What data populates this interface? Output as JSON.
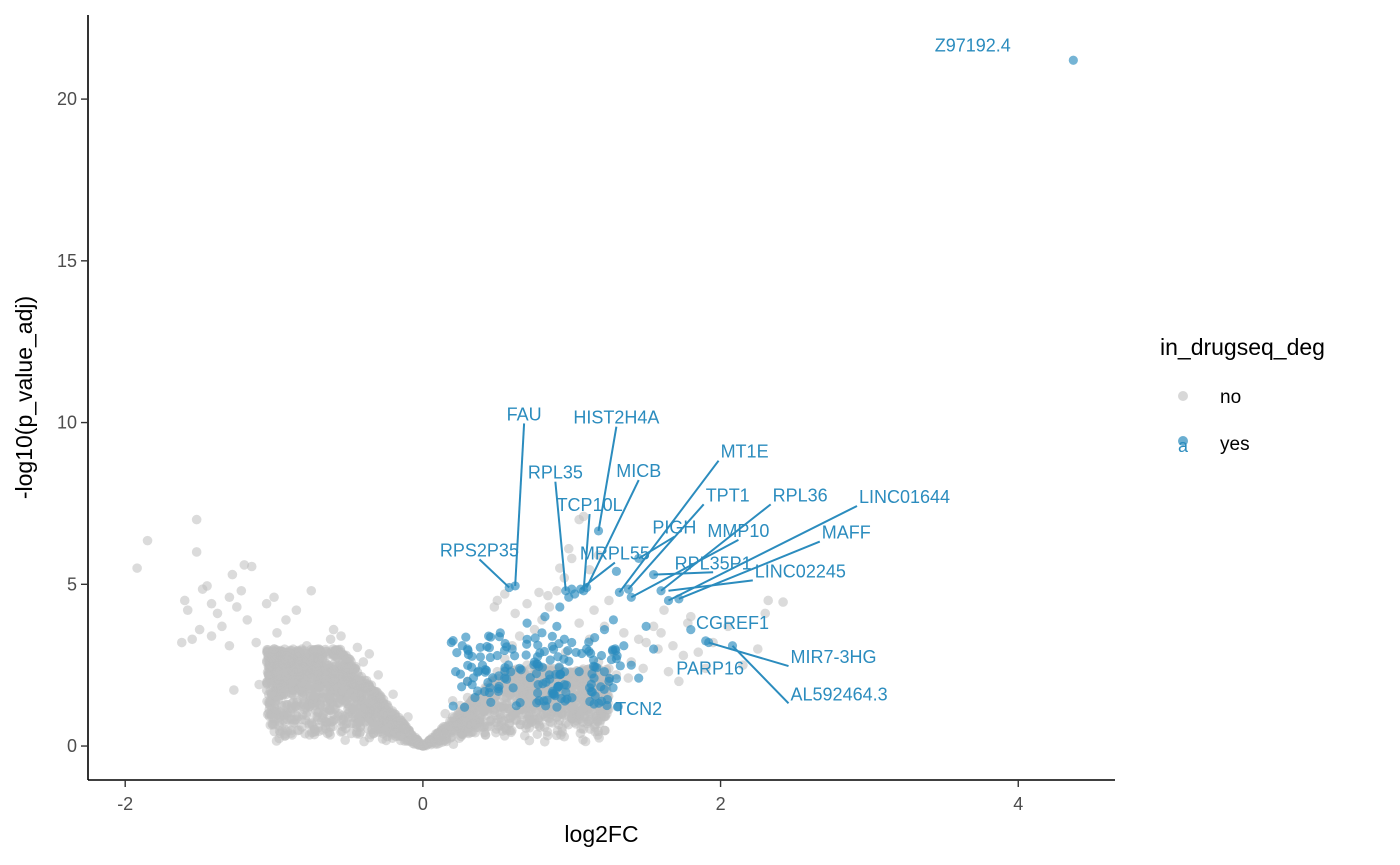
{
  "chart_data": {
    "type": "scatter",
    "title": "",
    "xlabel": "log2FC",
    "ylabel": "-log10(p_value_adj)",
    "xlim": [
      -2.25,
      4.65
    ],
    "ylim": [
      -1.05,
      22.6
    ],
    "x_ticks": [
      {
        "value": -2,
        "label": "-2"
      },
      {
        "value": 0,
        "label": "0"
      },
      {
        "value": 2,
        "label": "2"
      },
      {
        "value": 4,
        "label": "4"
      }
    ],
    "y_ticks": [
      {
        "value": 0,
        "label": "0"
      },
      {
        "value": 5,
        "label": "5"
      },
      {
        "value": 10,
        "label": "10"
      },
      {
        "value": 15,
        "label": "15"
      },
      {
        "value": 20,
        "label": "20"
      }
    ],
    "grid": false,
    "legend": {
      "title": "in_drugseq_deg",
      "placement": "right",
      "entries": [
        {
          "label": "no",
          "color": "#bebebe"
        },
        {
          "label": "yes",
          "color": "#2b8cbe",
          "key_glyph": "a"
        }
      ]
    },
    "series": [
      {
        "label": "no",
        "color": "#bebebe",
        "points": [
          [
            -1.92,
            5.5
          ],
          [
            -1.85,
            6.35
          ],
          [
            -1.52,
            7.0
          ],
          [
            -1.52,
            6.0
          ],
          [
            -1.6,
            4.5
          ],
          [
            -1.58,
            4.2
          ],
          [
            -1.48,
            4.85
          ],
          [
            -1.45,
            4.95
          ],
          [
            -1.42,
            4.4
          ],
          [
            -1.38,
            4.1
          ],
          [
            -1.35,
            3.7
          ],
          [
            -1.3,
            4.6
          ],
          [
            -1.28,
            5.3
          ],
          [
            -1.2,
            5.6
          ],
          [
            -1.25,
            4.3
          ],
          [
            -1.5,
            3.6
          ],
          [
            -1.55,
            3.3
          ],
          [
            -1.62,
            3.2
          ],
          [
            -1.42,
            3.4
          ],
          [
            -1.22,
            4.8
          ],
          [
            -1.15,
            5.55
          ],
          [
            -1.05,
            4.4
          ],
          [
            -1.0,
            4.6
          ],
          [
            -0.92,
            3.9
          ],
          [
            -0.85,
            4.2
          ],
          [
            -0.75,
            4.8
          ],
          [
            -0.6,
            3.6
          ],
          [
            -0.55,
            3.4
          ],
          [
            -1.18,
            3.9
          ],
          [
            -1.3,
            3.1
          ],
          [
            -1.12,
            3.2
          ],
          [
            -0.98,
            3.5
          ],
          [
            -1.27,
            1.73
          ],
          [
            -1.1,
            1.9
          ],
          [
            -0.95,
            1.8
          ],
          [
            -0.88,
            1.6
          ],
          [
            -0.8,
            1.3
          ],
          [
            -0.62,
            1.1
          ],
          [
            -0.5,
            0.9
          ],
          [
            -0.42,
            0.75
          ],
          [
            -0.3,
            0.62
          ],
          [
            -0.18,
            0.4
          ],
          [
            -0.08,
            0.2
          ],
          [
            -0.7,
            1.05
          ],
          [
            -0.45,
            1.25
          ],
          [
            -0.6,
            0.8
          ],
          [
            -0.35,
            0.35
          ],
          [
            -0.25,
            0.5
          ],
          [
            -0.15,
            0.3
          ],
          [
            -0.85,
            2.4
          ],
          [
            -0.7,
            2.7
          ],
          [
            -0.55,
            2.9
          ],
          [
            -0.4,
            2.6
          ],
          [
            -0.3,
            2.2
          ],
          [
            -0.2,
            1.6
          ],
          [
            -0.1,
            0.9
          ],
          [
            -0.65,
            2.0
          ],
          [
            -0.5,
            2.1
          ],
          [
            -0.9,
            2.9
          ],
          [
            -1.0,
            3.0
          ],
          [
            -0.78,
            3.1
          ],
          [
            -0.62,
            3.3
          ],
          [
            -0.44,
            3.05
          ],
          [
            -0.36,
            2.85
          ],
          [
            0.02,
            0.08
          ],
          [
            0.05,
            0.15
          ],
          [
            0.1,
            0.35
          ],
          [
            0.15,
            0.6
          ],
          [
            0.2,
            0.9
          ],
          [
            0.25,
            1.25
          ],
          [
            0.3,
            1.5
          ],
          [
            0.35,
            0.8
          ],
          [
            0.4,
            1.1
          ],
          [
            0.45,
            1.9
          ],
          [
            0.5,
            2.3
          ],
          [
            0.55,
            2.7
          ],
          [
            0.6,
            3.1
          ],
          [
            0.65,
            3.4
          ],
          [
            0.7,
            2.5
          ],
          [
            0.75,
            3.6
          ],
          [
            0.8,
            3.9
          ],
          [
            0.85,
            4.3
          ],
          [
            0.9,
            4.8
          ],
          [
            0.95,
            5.2
          ],
          [
            0.98,
            6.1
          ],
          [
            0.92,
            5.5
          ],
          [
            1.0,
            5.8
          ],
          [
            1.05,
            7.0
          ],
          [
            1.08,
            7.1
          ],
          [
            1.12,
            5.45
          ],
          [
            1.18,
            5.9
          ],
          [
            0.5,
            4.5
          ],
          [
            0.55,
            4.7
          ],
          [
            0.48,
            4.3
          ],
          [
            0.62,
            4.1
          ],
          [
            0.7,
            4.4
          ],
          [
            0.78,
            4.75
          ],
          [
            0.84,
            4.65
          ],
          [
            0.2,
            1.4
          ],
          [
            0.3,
            2.0
          ],
          [
            0.4,
            1.6
          ],
          [
            0.65,
            2.0
          ],
          [
            0.72,
            1.6
          ],
          [
            0.82,
            1.9
          ],
          [
            0.9,
            1.3
          ],
          [
            1.0,
            1.1
          ],
          [
            1.08,
            1.6
          ],
          [
            1.2,
            1.4
          ],
          [
            1.3,
            2.2
          ],
          [
            1.4,
            2.6
          ],
          [
            1.5,
            3.2
          ],
          [
            1.6,
            3.5
          ],
          [
            1.65,
            2.3
          ],
          [
            1.72,
            2.0
          ],
          [
            1.78,
            3.8
          ],
          [
            1.8,
            4.0
          ],
          [
            1.85,
            2.9
          ],
          [
            1.9,
            2.4
          ],
          [
            2.15,
            2.5
          ],
          [
            2.25,
            3.0
          ],
          [
            2.3,
            4.1
          ],
          [
            2.32,
            4.5
          ],
          [
            2.42,
            4.45
          ],
          [
            2.05,
            3.7
          ],
          [
            1.95,
            3.2
          ],
          [
            1.75,
            2.8
          ],
          [
            1.58,
            3.0
          ],
          [
            1.48,
            2.4
          ],
          [
            1.38,
            2.1
          ],
          [
            1.28,
            2.9
          ],
          [
            1.18,
            2.6
          ],
          [
            1.12,
            3.3
          ],
          [
            1.05,
            3.8
          ],
          [
            0.15,
            1.0
          ],
          [
            0.25,
            0.7
          ],
          [
            0.35,
            1.3
          ],
          [
            0.45,
            0.6
          ],
          [
            0.55,
            1.0
          ],
          [
            0.6,
            1.4
          ],
          [
            0.8,
            1.2
          ],
          [
            0.88,
            2.3
          ],
          [
            0.96,
            2.9
          ],
          [
            1.02,
            2.0
          ],
          [
            1.35,
            3.5
          ],
          [
            1.45,
            3.3
          ],
          [
            1.55,
            3.7
          ],
          [
            1.62,
            4.2
          ],
          [
            1.68,
            3.1
          ],
          [
            1.22,
            3.7
          ],
          [
            1.15,
            4.2
          ],
          [
            1.25,
            4.5
          ]
        ]
      },
      {
        "label": "yes",
        "color": "#2b8cbe",
        "points": [
          [
            4.37,
            21.2
          ],
          [
            0.58,
            4.9
          ],
          [
            0.62,
            4.95
          ],
          [
            0.96,
            4.8
          ],
          [
            1.0,
            4.85
          ],
          [
            1.06,
            4.85
          ],
          [
            1.08,
            4.8
          ],
          [
            1.1,
            4.9
          ],
          [
            1.18,
            6.65
          ],
          [
            1.3,
            5.4
          ],
          [
            1.32,
            4.75
          ],
          [
            1.38,
            4.85
          ],
          [
            1.45,
            5.8
          ],
          [
            1.55,
            5.3
          ],
          [
            1.65,
            4.5
          ],
          [
            1.6,
            4.8
          ],
          [
            1.4,
            4.6
          ],
          [
            1.72,
            4.55
          ],
          [
            1.8,
            3.6
          ],
          [
            1.92,
            3.2
          ],
          [
            2.08,
            3.1
          ],
          [
            1.9,
            3.25
          ],
          [
            1.15,
            1.3
          ],
          [
            0.98,
            4.6
          ],
          [
            1.02,
            4.7
          ],
          [
            0.22,
            2.3
          ],
          [
            0.3,
            2.0
          ],
          [
            0.4,
            2.5
          ],
          [
            0.5,
            2.8
          ],
          [
            0.6,
            3.0
          ],
          [
            0.7,
            3.3
          ],
          [
            0.8,
            3.5
          ],
          [
            0.9,
            3.7
          ],
          [
            1.0,
            3.2
          ],
          [
            1.1,
            3.0
          ],
          [
            1.2,
            2.8
          ],
          [
            1.3,
            2.7
          ],
          [
            1.4,
            2.5
          ],
          [
            1.45,
            2.1
          ],
          [
            1.55,
            3.0
          ],
          [
            1.5,
            3.7
          ],
          [
            0.45,
            1.8
          ],
          [
            0.55,
            2.1
          ],
          [
            0.65,
            2.4
          ],
          [
            0.75,
            2.6
          ],
          [
            0.85,
            2.2
          ],
          [
            0.95,
            1.9
          ],
          [
            1.05,
            2.3
          ],
          [
            1.15,
            2.1
          ],
          [
            1.25,
            2.0
          ],
          [
            0.35,
            1.5
          ],
          [
            0.28,
            1.2
          ],
          [
            0.3,
            3.0
          ],
          [
            0.52,
            3.5
          ],
          [
            0.7,
            3.8
          ],
          [
            0.82,
            4.0
          ],
          [
            0.92,
            4.3
          ],
          [
            1.28,
            3.9
          ],
          [
            1.22,
            3.6
          ],
          [
            0.88,
            1.6
          ],
          [
            0.78,
            1.4
          ],
          [
            1.12,
            1.8
          ],
          [
            1.35,
            3.1
          ]
        ]
      }
    ],
    "labels": [
      {
        "text": "Z97192.4",
        "x": 4.37,
        "y": 21.2,
        "anchor": "end",
        "lx": 3.95,
        "ly": 21.65,
        "leader": false
      },
      {
        "text": "FAU",
        "x": 0.62,
        "y": 4.95,
        "anchor": "middle",
        "lx": 0.68,
        "ly": 10.25,
        "leader": true
      },
      {
        "text": "HIST2H4A",
        "x": 1.18,
        "y": 6.65,
        "anchor": "middle",
        "lx": 1.3,
        "ly": 10.15,
        "leader": true
      },
      {
        "text": "RPL35",
        "x": 0.96,
        "y": 4.8,
        "anchor": "middle",
        "lx": 0.89,
        "ly": 8.45,
        "leader": true
      },
      {
        "text": "MICB",
        "x": 1.1,
        "y": 4.9,
        "anchor": "middle",
        "lx": 1.45,
        "ly": 8.5,
        "leader": true
      },
      {
        "text": "MT1E",
        "x": 1.32,
        "y": 4.75,
        "anchor": "start",
        "lx": 2.0,
        "ly": 9.1,
        "leader": true
      },
      {
        "text": "TPT1",
        "x": 1.38,
        "y": 4.85,
        "anchor": "start",
        "lx": 1.9,
        "ly": 7.75,
        "leader": true
      },
      {
        "text": "RPL36",
        "x": 1.6,
        "y": 4.8,
        "anchor": "start",
        "lx": 2.35,
        "ly": 7.75,
        "leader": true
      },
      {
        "text": "LINC01644",
        "x": 1.65,
        "y": 4.5,
        "anchor": "start",
        "lx": 2.93,
        "ly": 7.7,
        "leader": true
      },
      {
        "text": "TCP10L",
        "x": 1.08,
        "y": 4.8,
        "anchor": "middle",
        "lx": 1.12,
        "ly": 7.45,
        "leader": true
      },
      {
        "text": "PIGH",
        "x": 1.45,
        "y": 5.8,
        "anchor": "middle",
        "lx": 1.69,
        "ly": 6.75,
        "leader": true
      },
      {
        "text": "MMP10",
        "x": 1.4,
        "y": 4.6,
        "anchor": "middle",
        "lx": 2.12,
        "ly": 6.65,
        "leader": true
      },
      {
        "text": "MAFF",
        "x": 1.72,
        "y": 4.55,
        "anchor": "start",
        "lx": 2.68,
        "ly": 6.6,
        "leader": true
      },
      {
        "text": "MRPL55",
        "x": 1.06,
        "y": 4.85,
        "anchor": "middle",
        "lx": 1.29,
        "ly": 5.95,
        "leader": true
      },
      {
        "text": "RPS2P35",
        "x": 0.58,
        "y": 4.9,
        "anchor": "middle",
        "lx": 0.38,
        "ly": 6.05,
        "leader": true
      },
      {
        "text": "RPL35P1",
        "x": 1.55,
        "y": 5.3,
        "anchor": "middle",
        "lx": 1.95,
        "ly": 5.65,
        "leader": true
      },
      {
        "text": "LINC02245",
        "x": 1.65,
        "y": 4.8,
        "anchor": "start",
        "lx": 2.23,
        "ly": 5.4,
        "leader": true
      },
      {
        "text": "CGREF1",
        "x": 1.8,
        "y": 3.6,
        "anchor": "middle",
        "lx": 2.08,
        "ly": 3.8,
        "leader": false
      },
      {
        "text": "MIR7-3HG",
        "x": 1.92,
        "y": 3.2,
        "anchor": "start",
        "lx": 2.47,
        "ly": 2.75,
        "leader": true
      },
      {
        "text": "PARP16",
        "x": 1.9,
        "y": 3.25,
        "anchor": "middle",
        "lx": 1.93,
        "ly": 2.4,
        "leader": false
      },
      {
        "text": "AL592464.3",
        "x": 2.08,
        "y": 3.1,
        "anchor": "start",
        "lx": 2.47,
        "ly": 1.6,
        "leader": true
      },
      {
        "text": "TCN2",
        "x": 1.15,
        "y": 1.3,
        "anchor": "middle",
        "lx": 1.45,
        "ly": 1.15,
        "leader": false
      }
    ]
  }
}
